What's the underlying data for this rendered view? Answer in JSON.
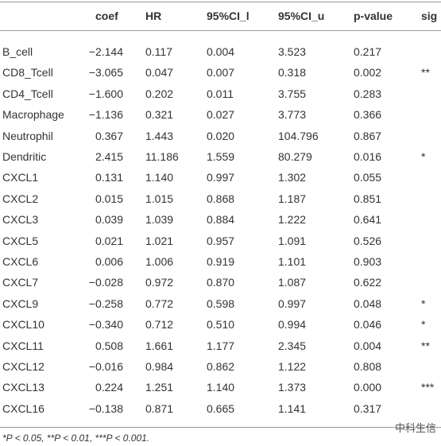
{
  "table": {
    "header": [
      "coef",
      "HR",
      "95%CI_l",
      "95%CI_u",
      "p-value",
      "sig"
    ],
    "rows": [
      [
        "B_cell",
        "−2.144",
        "0.117",
        "0.004",
        "3.523",
        "0.217",
        null
      ],
      [
        "CD8_Tcell",
        "−3.065",
        "0.047",
        "0.007",
        "0.318",
        "0.002",
        "**"
      ],
      [
        "CD4_Tcell",
        "−1.600",
        "0.202",
        "0.011",
        "3.755",
        "0.283",
        null
      ],
      [
        "Macrophage",
        "−1.136",
        "0.321",
        "0.027",
        "3.773",
        "0.366",
        null
      ],
      [
        "Neutrophil",
        "0.367",
        "1.443",
        "0.020",
        "104.796",
        "0.867",
        null
      ],
      [
        "Dendritic",
        "2.415",
        "11.186",
        "1.559",
        "80.279",
        "0.016",
        "*"
      ],
      [
        "CXCL1",
        "0.131",
        "1.140",
        "0.997",
        "1.302",
        "0.055",
        null
      ],
      [
        "CXCL2",
        "0.015",
        "1.015",
        "0.868",
        "1.187",
        "0.851",
        null
      ],
      [
        "CXCL3",
        "0.039",
        "1.039",
        "0.884",
        "1.222",
        "0.641",
        null
      ],
      [
        "CXCL5",
        "0.021",
        "1.021",
        "0.957",
        "1.091",
        "0.526",
        null
      ],
      [
        "CXCL6",
        "0.006",
        "1.006",
        "0.919",
        "1.101",
        "0.903",
        null
      ],
      [
        "CXCL7",
        "−0.028",
        "0.972",
        "0.870",
        "1.087",
        "0.622",
        null
      ],
      [
        "CXCL9",
        "−0.258",
        "0.772",
        "0.598",
        "0.997",
        "0.048",
        "*"
      ],
      [
        "CXCL10",
        "−0.340",
        "0.712",
        "0.510",
        "0.994",
        "0.046",
        "*"
      ],
      [
        "CXCL11",
        "0.508",
        "1.661",
        "1.177",
        "2.345",
        "0.004",
        "**"
      ],
      [
        "CXCL12",
        "−0.016",
        "0.984",
        "0.862",
        "1.122",
        "0.808",
        null
      ],
      [
        "CXCL13",
        "0.224",
        "1.251",
        "1.140",
        "1.373",
        "0.000",
        "***"
      ],
      [
        "CXCL16",
        "−0.138",
        "0.871",
        "0.665",
        "1.141",
        "0.317",
        null
      ]
    ]
  },
  "footnote": "*P < 0.05, **P < 0.01, ***P < 0.001.",
  "watermark": "中科生信"
}
